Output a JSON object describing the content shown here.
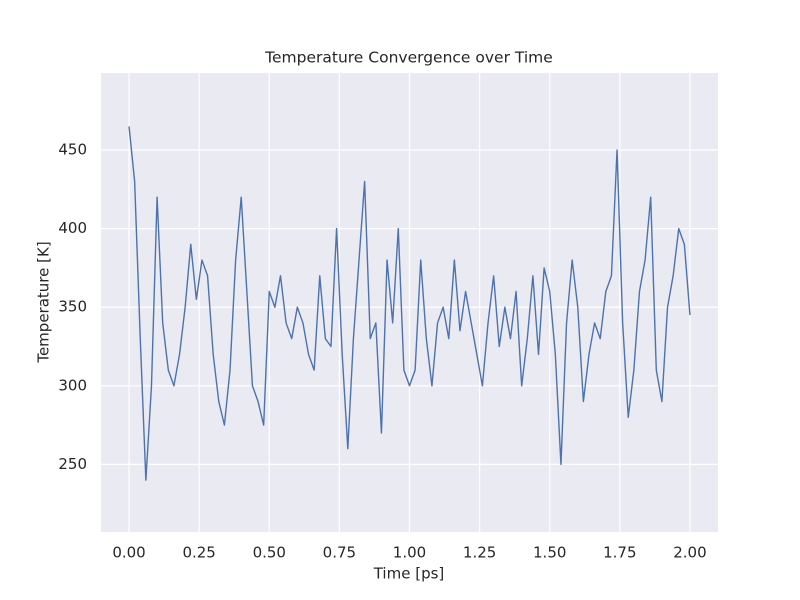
{
  "chart_data": {
    "type": "line",
    "title": "Temperature Convergence over Time",
    "xlabel": "Time [ps]",
    "ylabel": "Temperature [K]",
    "x": [
      0,
      0.02,
      0.04,
      0.06,
      0.08,
      0.1,
      0.12,
      0.14,
      0.16,
      0.18,
      0.2,
      0.22,
      0.24,
      0.26,
      0.28,
      0.3,
      0.32,
      0.34,
      0.36,
      0.38,
      0.4,
      0.42,
      0.44,
      0.46,
      0.48,
      0.5,
      0.52,
      0.54,
      0.56,
      0.58,
      0.6,
      0.62,
      0.64,
      0.66,
      0.68,
      0.7,
      0.72,
      0.74,
      0.76,
      0.78,
      0.8,
      0.82,
      0.84,
      0.86,
      0.88,
      0.9,
      0.92,
      0.94,
      0.96,
      0.98,
      1,
      1.02,
      1.04,
      1.06,
      1.08,
      1.1,
      1.12,
      1.14,
      1.16,
      1.18,
      1.2,
      1.22,
      1.24,
      1.26,
      1.28,
      1.3,
      1.32,
      1.34,
      1.36,
      1.38,
      1.4,
      1.42,
      1.44,
      1.46,
      1.48,
      1.5,
      1.52,
      1.54,
      1.56,
      1.58,
      1.6,
      1.62,
      1.64,
      1.66,
      1.68,
      1.7,
      1.72,
      1.74,
      1.76,
      1.78,
      1.8,
      1.82,
      1.84,
      1.86,
      1.88,
      1.9,
      1.92,
      1.94,
      1.96,
      1.98,
      2
    ],
    "series": [
      {
        "name": "Temperature",
        "color": "#4c72b0",
        "values": [
          465,
          430,
          330,
          240,
          300,
          420,
          340,
          310,
          300,
          320,
          350,
          390,
          355,
          380,
          370,
          320,
          290,
          275,
          310,
          380,
          420,
          360,
          300,
          290,
          275,
          360,
          350,
          370,
          340,
          330,
          350,
          340,
          320,
          310,
          370,
          330,
          325,
          400,
          320,
          260,
          330,
          380,
          430,
          330,
          340,
          270,
          380,
          340,
          400,
          310,
          300,
          310,
          380,
          330,
          300,
          340,
          350,
          330,
          380,
          335,
          360,
          340,
          320,
          300,
          340,
          370,
          325,
          350,
          330,
          360,
          300,
          330,
          370,
          320,
          375,
          360,
          320,
          250,
          340,
          380,
          350,
          290,
          320,
          340,
          330,
          360,
          370,
          450,
          340,
          280,
          310,
          360,
          380,
          420,
          310,
          290,
          350,
          370,
          400,
          390,
          345
        ]
      }
    ],
    "xlim": [
      -0.1,
      2.1
    ],
    "ylim": [
      207,
      499
    ],
    "xticks": [
      {
        "value": 0,
        "label": "0.00"
      },
      {
        "value": 0.25,
        "label": "0.25"
      },
      {
        "value": 0.5,
        "label": "0.50"
      },
      {
        "value": 0.75,
        "label": "0.75"
      },
      {
        "value": 1,
        "label": "1.00"
      },
      {
        "value": 1.25,
        "label": "1.25"
      },
      {
        "value": 1.5,
        "label": "1.50"
      },
      {
        "value": 1.75,
        "label": "1.75"
      },
      {
        "value": 2,
        "label": "2.00"
      }
    ],
    "yticks": [
      250,
      300,
      350,
      400,
      450
    ],
    "grid": true
  }
}
